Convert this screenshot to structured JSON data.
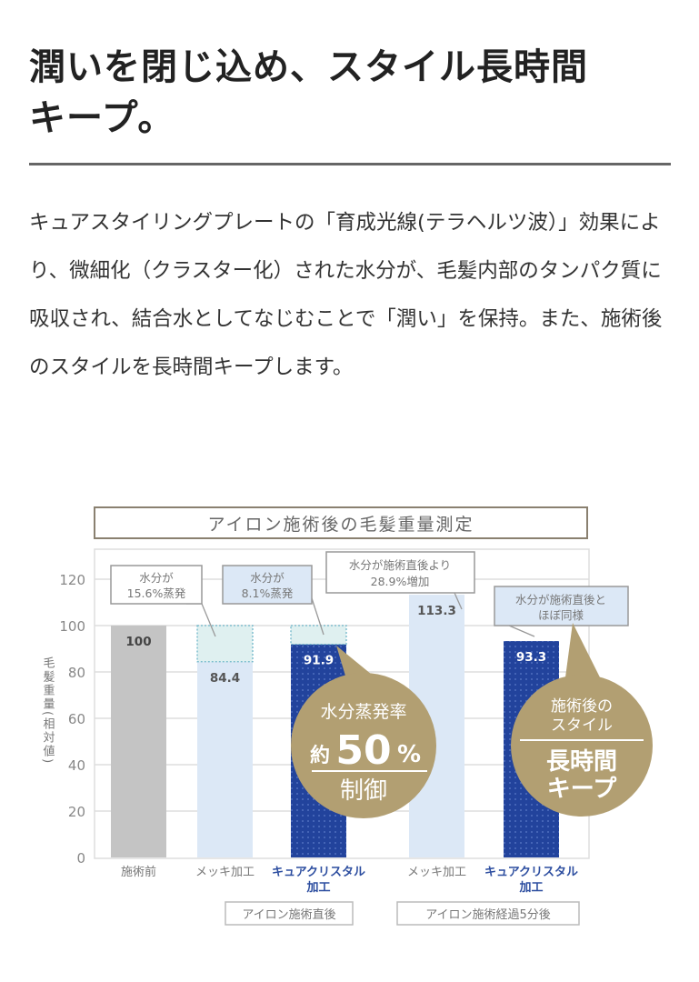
{
  "heading": {
    "line1": "潤いを閉じ込め、スタイル長時間",
    "line2": "キープ。"
  },
  "body_text": "キュアスタイリングプレートの「育成光線(テラヘルツ波）」効果により、微細化（クラスター化）された水分が、毛髪内部のタンパク質に吸収され、結合水としてなじむことで「潤い」を保持。また、施術後のスタイルを長時間キープします。",
  "chart_data": {
    "type": "bar",
    "title": "アイロン施術後の毛髪重量測定",
    "ylabel": "毛髪重量(相対値)",
    "ylim": [
      0,
      120
    ],
    "yticks": [
      "0",
      "20",
      "40",
      "60",
      "80",
      "100",
      "120"
    ],
    "grid": true,
    "categories": [
      {
        "label": "施術前",
        "line2": ""
      },
      {
        "label": "メッキ加工",
        "line2": ""
      },
      {
        "label": "キュアクリスタル",
        "line2": "加工"
      },
      {
        "label": "メッキ加工",
        "line2": ""
      },
      {
        "label": "キュアクリスタル",
        "line2": "加工"
      }
    ],
    "values": [
      100,
      84.4,
      91.9,
      113.3,
      93.3
    ],
    "value_labels": [
      "100",
      "84.4",
      "91.9",
      "113.3",
      "93.3"
    ],
    "evaporated_to": [
      null,
      100,
      100,
      null,
      null
    ],
    "groups": [
      "アイロン施術直後",
      "アイロン施術経過5分後"
    ],
    "annotations": [
      {
        "line1": "水分が",
        "line2": "15.6%蒸発"
      },
      {
        "line1": "水分が",
        "line2": "8.1%蒸発"
      },
      {
        "line1": "水分が施術直後より",
        "line2": "28.9%増加"
      },
      {
        "line1": "水分が施術直後と",
        "line2": "ほぼ同様"
      }
    ],
    "badges": [
      {
        "top": "水分蒸発率",
        "prefix": "約",
        "big": "50",
        "unit": "%",
        "bottom": "制御"
      },
      {
        "top1": "施術後の",
        "top2": "スタイル",
        "bottom1": "長時間",
        "bottom2": "キープ"
      }
    ],
    "colors": {
      "before": "#c4c4c4",
      "plating": "#dce8f6",
      "cure": "#22439c",
      "evaporated": "#dff0f0",
      "badge": "#b29f72",
      "category_cure_text": "#2d4ea0"
    }
  }
}
